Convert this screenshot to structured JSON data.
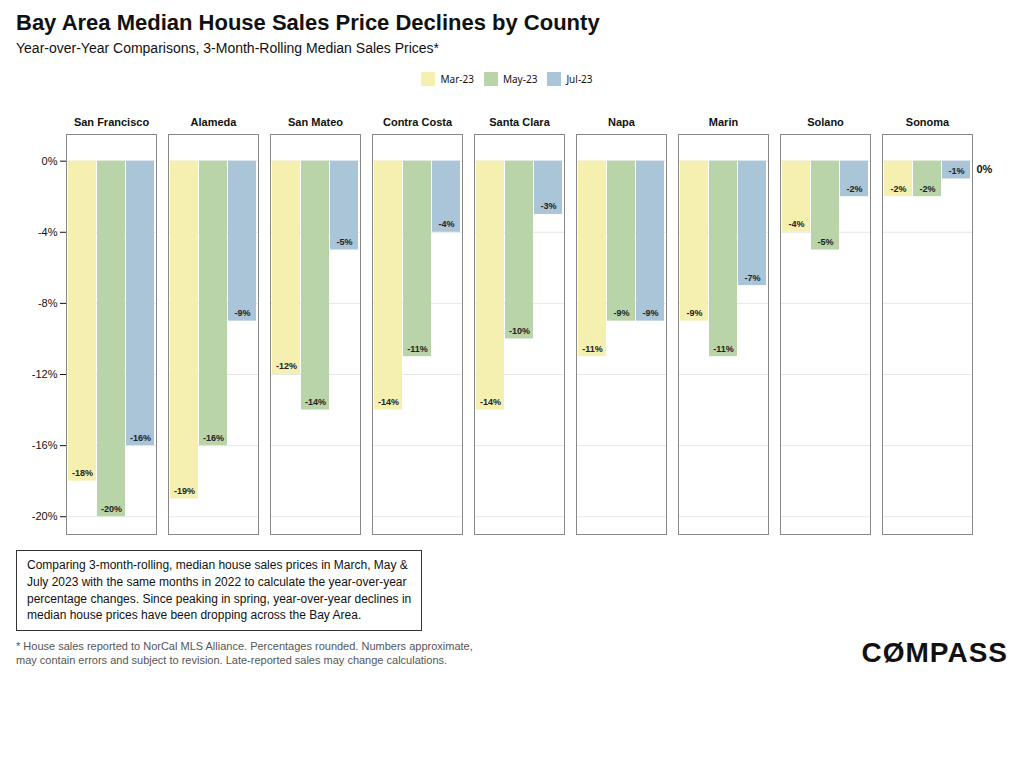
{
  "chart_data": {
    "type": "bar",
    "title": "Bay Area Median House Sales Price Declines by County",
    "subtitle": "Year-over-Year Comparisons, 3-Month-Rolling Median Sales Prices*",
    "categories": [
      "San Francisco",
      "Alameda",
      "San Mateo",
      "Contra Costa",
      "Santa Clara",
      "Napa",
      "Marin",
      "Solano",
      "Sonoma"
    ],
    "series": [
      {
        "name": "Mar-23",
        "color": "#f5f0b0",
        "values": [
          -18,
          -19,
          -12,
          -14,
          -14,
          -11,
          -9,
          -4,
          -2
        ],
        "value_labels": [
          "-18%",
          "-19%",
          "-12%",
          "-14%",
          "-14%",
          "-11%",
          "-9%",
          "-4%",
          "-2%"
        ]
      },
      {
        "name": "May-23",
        "color": "#b8d4a8",
        "values": [
          -20,
          -16,
          -14,
          -11,
          -10,
          -9,
          -11,
          -5,
          -2
        ],
        "value_labels": [
          "-20%",
          "-16%",
          "-14%",
          "-11%",
          "-10%",
          "-9%",
          "-11%",
          "-5%",
          "-2%"
        ]
      },
      {
        "name": "Jul-23",
        "color": "#aac4d8",
        "values": [
          -16,
          -9,
          -5,
          -4,
          -3,
          -9,
          -7,
          -2,
          -1
        ],
        "value_labels": [
          "-16%",
          "-9%",
          "-5%",
          "-4%",
          "-3%",
          "-9%",
          "-7%",
          "-2%",
          "-1%"
        ]
      }
    ],
    "ylim": [
      -21,
      1.5
    ],
    "yticks": [
      {
        "value": 0,
        "label": "0%"
      },
      {
        "value": -4,
        "label": "-4%"
      },
      {
        "value": -8,
        "label": "-8%"
      },
      {
        "value": -12,
        "label": "-12%"
      },
      {
        "value": -16,
        "label": "-16%"
      },
      {
        "value": -20,
        "label": "-20%"
      }
    ],
    "grid": true,
    "legend": "upper center",
    "data_labels": true,
    "annotations": [
      {
        "text": "Comparing 3-month-rolling, median house sales prices in March, May &\nJuly 2023 with the same months in 2022 to calculate the year-over-year\npercentage changes. Since peaking in spring, year-over-year declines in\nmedian house prices have been dropping across the Bay Area."
      },
      {
        "text": "0%",
        "y": 0
      },
      {
        "text": "CØMPASS"
      }
    ],
    "footnote": "* House sales reported to NorCal MLS Alliance. Percentages rounded. Numbers approximate,\nmay contain errors and subject to revision. Late-reported sales may change calculations."
  }
}
